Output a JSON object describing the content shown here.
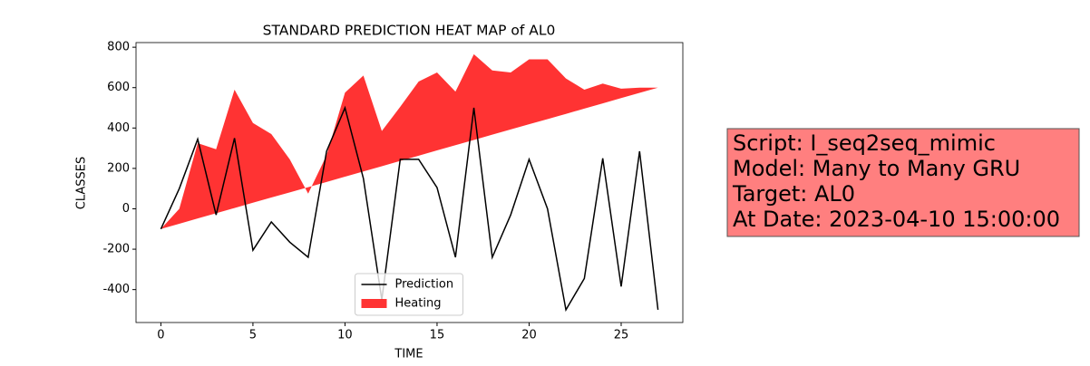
{
  "chart_data": {
    "type": "line-fill",
    "title": "STANDARD PREDICTION HEAT MAP of AL0",
    "x_label": "TIME",
    "y_label": "CLASSES",
    "x": [
      0,
      1,
      2,
      3,
      4,
      5,
      6,
      7,
      8,
      9,
      10,
      11,
      12,
      13,
      14,
      15,
      16,
      17,
      18,
      19,
      20,
      21,
      22,
      23,
      24,
      25,
      26,
      27
    ],
    "series": [
      {
        "name": "Prediction",
        "color": "#000000",
        "values": [
          -100,
          100,
          345,
          -30,
          350,
          -205,
          -65,
          -165,
          -240,
          285,
          500,
          150,
          -450,
          245,
          245,
          105,
          -240,
          500,
          -240,
          -30,
          245,
          0,
          -500,
          -345,
          250,
          -385,
          285,
          -500
        ]
      },
      {
        "name": "Heating",
        "color": "#ff0000",
        "opacity": 0.8,
        "values": [
          -100,
          0,
          325,
          295,
          590,
          425,
          370,
          245,
          75,
          265,
          575,
          660,
          385,
          505,
          630,
          675,
          580,
          765,
          685,
          675,
          740,
          740,
          645,
          590,
          620,
          595,
          600,
          600
        ],
        "baseline": [
          -100,
          -74,
          -48,
          -22,
          4,
          30,
          56,
          81,
          107,
          133,
          159,
          185,
          211,
          237,
          263,
          289,
          315,
          341,
          367,
          393,
          419,
          444,
          470,
          496,
          522,
          548,
          574,
          600
        ]
      }
    ],
    "xlim": [
      -1.35,
      28.35
    ],
    "xticks": [
      0,
      5,
      10,
      15,
      20,
      25
    ],
    "ylim": [
      -563,
      823
    ],
    "yticks": [
      -400,
      -200,
      0,
      200,
      400,
      600,
      800
    ],
    "legend": "lower center",
    "annotation_lines": [
      "Script: I_seq2seq_mimic",
      "Model: Many to Many GRU",
      "Target: AL0",
      "At Date: 2023-04-10 15:00:00"
    ],
    "annotation_color": "#ff7f7f"
  }
}
